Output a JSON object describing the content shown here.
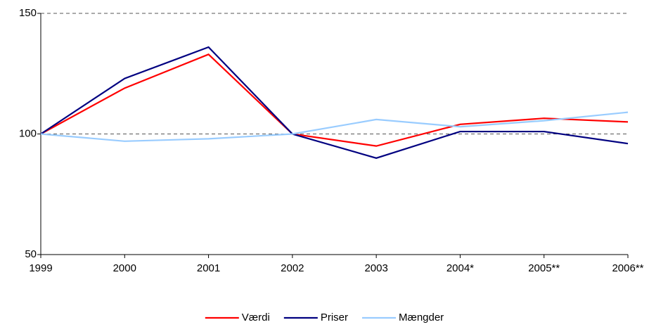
{
  "chart_data": {
    "type": "line",
    "categories": [
      "1999",
      "2000",
      "2001",
      "2002",
      "2003",
      "2004*",
      "2005**",
      "2006**"
    ],
    "series": [
      {
        "name": "Værdi",
        "color": "#ff0000",
        "values": [
          100,
          119,
          133,
          100,
          95,
          104,
          106.5,
          105
        ]
      },
      {
        "name": "Priser",
        "color": "#000080",
        "values": [
          100,
          123,
          136,
          100,
          90,
          101,
          101,
          96
        ]
      },
      {
        "name": "Mængder",
        "color": "#99ccff",
        "values": [
          100,
          97,
          98,
          100,
          106,
          103,
          105.5,
          109
        ]
      }
    ],
    "ylim": [
      50,
      150
    ],
    "yticks": [
      50,
      100,
      150
    ],
    "grid": true,
    "legend": "bottom"
  }
}
